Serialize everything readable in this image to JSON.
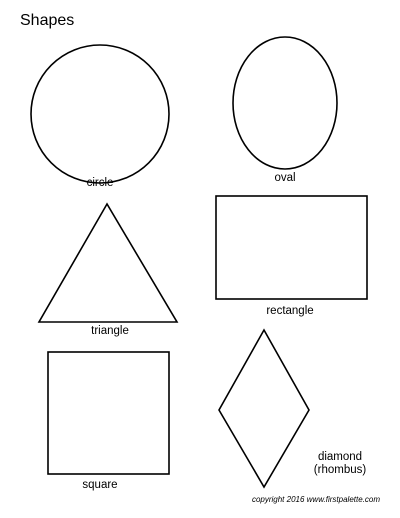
{
  "page": {
    "title": "Shapes",
    "copyright": "copyright 2016 www.firstpalette.com"
  },
  "shapes": {
    "circle": {
      "label": "circle"
    },
    "oval": {
      "label": "oval"
    },
    "triangle": {
      "label": "triangle"
    },
    "rectangle": {
      "label": "rectangle"
    },
    "square": {
      "label": "square"
    },
    "diamond": {
      "label_line1": "diamond",
      "label_line2": "(rhombus)"
    }
  },
  "colors": {
    "outline": "#000000",
    "background": "#ffffff"
  }
}
